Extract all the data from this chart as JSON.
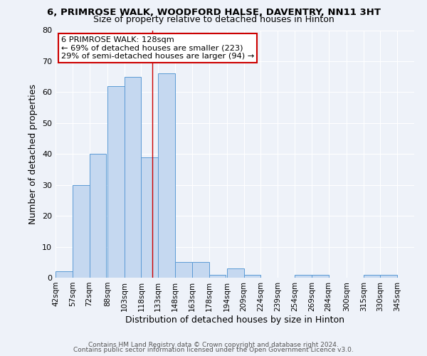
{
  "title": "6, PRIMROSE WALK, WOODFORD HALSE, DAVENTRY, NN11 3HT",
  "subtitle": "Size of property relative to detached houses in Hinton",
  "xlabel": "Distribution of detached houses by size in Hinton",
  "ylabel": "Number of detached properties",
  "bar_left_edges": [
    42,
    57,
    72,
    88,
    103,
    118,
    133,
    148,
    163,
    178,
    194,
    209,
    224,
    239,
    254,
    269,
    284,
    300,
    315,
    330
  ],
  "bar_heights": [
    2,
    30,
    40,
    62,
    65,
    39,
    66,
    5,
    5,
    1,
    3,
    1,
    0,
    0,
    1,
    1,
    0,
    0,
    1,
    1
  ],
  "bar_widths": [
    15,
    15,
    15,
    15,
    15,
    15,
    15,
    15,
    15,
    15,
    15,
    15,
    15,
    15,
    15,
    15,
    15,
    15,
    15,
    15
  ],
  "tick_labels": [
    "42sqm",
    "57sqm",
    "72sqm",
    "88sqm",
    "103sqm",
    "118sqm",
    "133sqm",
    "148sqm",
    "163sqm",
    "178sqm",
    "194sqm",
    "209sqm",
    "224sqm",
    "239sqm",
    "254sqm",
    "269sqm",
    "284sqm",
    "300sqm",
    "315sqm",
    "330sqm",
    "345sqm"
  ],
  "tick_positions": [
    42,
    57,
    72,
    88,
    103,
    118,
    133,
    148,
    163,
    178,
    194,
    209,
    224,
    239,
    254,
    269,
    284,
    300,
    315,
    330,
    345
  ],
  "bar_color": "#c5d8f0",
  "bar_edge_color": "#5b9bd5",
  "property_line_x": 128,
  "property_line_color": "#cc0000",
  "ylim": [
    0,
    80
  ],
  "xlim": [
    42,
    360
  ],
  "annotation_title": "6 PRIMROSE WALK: 128sqm",
  "annotation_line1": "← 69% of detached houses are smaller (223)",
  "annotation_line2": "29% of semi-detached houses are larger (94) →",
  "annotation_box_color": "#cc0000",
  "footer_line1": "Contains HM Land Registry data © Crown copyright and database right 2024.",
  "footer_line2": "Contains public sector information licensed under the Open Government Licence v3.0.",
  "bg_color": "#eef2f9",
  "plot_bg_color": "#eef2f9"
}
